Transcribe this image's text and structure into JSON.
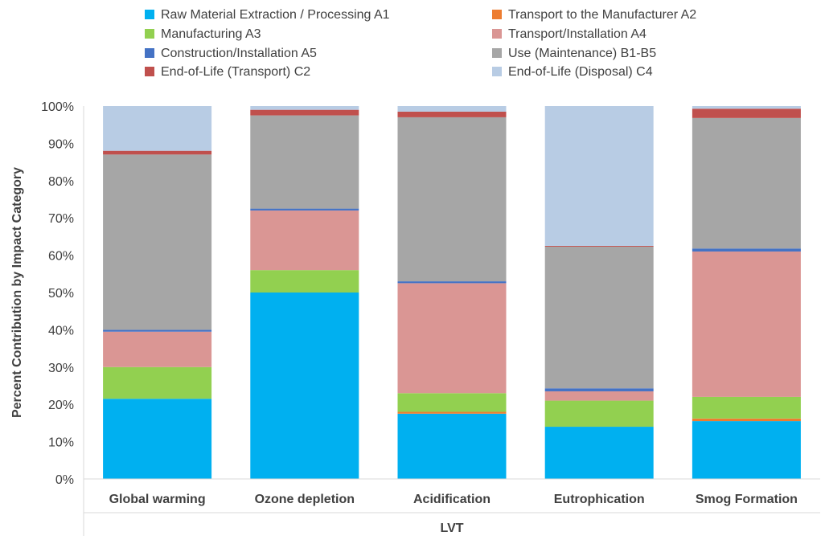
{
  "chart_data": {
    "type": "bar",
    "stacked": true,
    "title": "",
    "xlabel": "LVT",
    "ylabel": "Percent Contribution by Impact Category",
    "ylim": [
      0,
      100
    ],
    "yticks": [
      "0%",
      "10%",
      "20%",
      "30%",
      "40%",
      "50%",
      "60%",
      "70%",
      "80%",
      "90%",
      "100%"
    ],
    "grid": false,
    "legend_position": "top",
    "categories": [
      "Global warming",
      "Ozone depletion",
      "Acidification",
      "Eutrophication",
      "Smog Formation"
    ],
    "series": [
      {
        "name": "Raw Material Extraction / Processing A1",
        "color": "#00b0f0",
        "values": [
          21.5,
          50.0,
          17.5,
          14.0,
          15.5
        ]
      },
      {
        "name": "Transport to the Manufacturer A2",
        "color": "#ed7d31",
        "values": [
          0.0,
          0.0,
          0.5,
          0.0,
          0.7
        ]
      },
      {
        "name": "Manufacturing A3",
        "color": "#92d050",
        "values": [
          8.5,
          6.0,
          5.0,
          7.0,
          5.8
        ]
      },
      {
        "name": "Transport/Installation A4",
        "color": "#da9694",
        "values": [
          9.5,
          16.0,
          29.5,
          2.5,
          39.0
        ]
      },
      {
        "name": "Construction/Installation A5",
        "color": "#4472c4",
        "values": [
          0.5,
          0.5,
          0.5,
          0.8,
          0.8
        ]
      },
      {
        "name": "Use (Maintenance) B1-B5",
        "color": "#a6a6a6",
        "values": [
          47.0,
          25.0,
          44.0,
          38.0,
          35.0
        ]
      },
      {
        "name": "End-of-Life (Transport) C2",
        "color": "#c0504d",
        "values": [
          1.0,
          1.5,
          1.5,
          0.2,
          2.5
        ]
      },
      {
        "name": "End-of-Life (Disposal) C4",
        "color": "#b8cce4",
        "values": [
          12.0,
          1.0,
          1.5,
          37.5,
          0.7
        ]
      }
    ]
  }
}
